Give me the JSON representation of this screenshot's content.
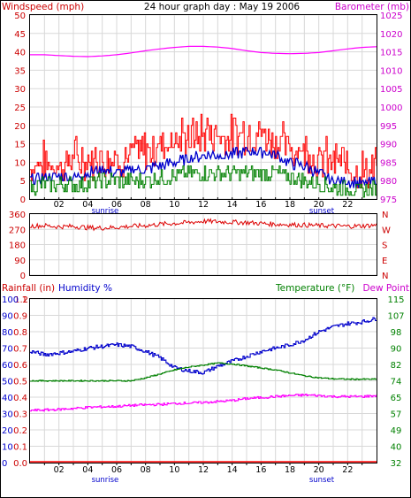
{
  "header": {
    "left_title": "Windspeed (mph)",
    "center_title": "24 hour graph day : May 19 2006",
    "right_title": "Barometer (mb)"
  },
  "x_axis": {
    "ticks": [
      "02",
      "04",
      "06",
      "08",
      "10",
      "12",
      "14",
      "16",
      "18",
      "20",
      "22"
    ],
    "sunrise_label": "sunrise",
    "sunset_label": "sunset",
    "sunrise_hour": 5.2,
    "sunset_hour": 20.2
  },
  "colors": {
    "frame": "#000000",
    "grid": "#d8d8d8",
    "gust": "#ff0000",
    "avg_wind": "#0000cc",
    "low_wind": "#008000",
    "barometer": "#ff00ff",
    "direction": "#dd0000",
    "humidity": "#0000cc",
    "temperature": "#008000",
    "dewpoint": "#ff00ff",
    "rainfall": "#ff0000",
    "blue_label": "#0000cc",
    "red_label": "#cc0000",
    "green_label": "#008000",
    "magenta_label": "#cc00cc"
  },
  "chart_data": [
    {
      "type": "line",
      "title": "24 hour graph day : May 19 2006",
      "y_left_label": "Windspeed (mph)",
      "y_right_label": "Barometer (mb)",
      "y_left_ticks": [
        "50",
        "45",
        "40",
        "35",
        "30",
        "25",
        "20",
        "15",
        "10",
        "5",
        "0"
      ],
      "y_right_ticks": [
        "1025",
        "1020",
        "1015",
        "1010",
        "1005",
        "1000",
        "995",
        "990",
        "985",
        "980",
        "975"
      ],
      "ylim_left": [
        0,
        50
      ],
      "ylim_right": [
        975,
        1025
      ],
      "xlim": [
        0,
        24
      ],
      "series": [
        {
          "x": [
            0,
            1,
            2,
            3,
            4,
            5,
            6,
            7,
            8,
            9,
            10,
            11,
            12,
            13,
            14,
            15,
            16,
            17,
            18,
            19,
            20,
            21,
            22,
            23,
            24
          ],
          "y": [
            8,
            9,
            8,
            10,
            9,
            10,
            10,
            11,
            12,
            14,
            15,
            16,
            17,
            17,
            16,
            17,
            17,
            15,
            13,
            12,
            10,
            9,
            8,
            7,
            7
          ]
        },
        {
          "x": [
            0,
            1,
            2,
            3,
            4,
            5,
            6,
            7,
            8,
            9,
            10,
            11,
            12,
            13,
            14,
            15,
            16,
            17,
            18,
            19,
            20,
            21,
            22,
            23,
            24
          ],
          "y": [
            5,
            6,
            6,
            6,
            7,
            8,
            7,
            8,
            8,
            9,
            10,
            11,
            12,
            12,
            12,
            13,
            13,
            12,
            10,
            9,
            7,
            5,
            5,
            4,
            5
          ]
        },
        {
          "x": [
            0,
            1,
            2,
            3,
            4,
            5,
            6,
            7,
            8,
            9,
            10,
            11,
            12,
            13,
            14,
            15,
            16,
            17,
            18,
            19,
            20,
            21,
            22,
            23,
            24
          ],
          "y": [
            3,
            4,
            4,
            4,
            4,
            5,
            5,
            5,
            5,
            6,
            6,
            7,
            7,
            7,
            7,
            7,
            7,
            7,
            6,
            5,
            4,
            3,
            3,
            2,
            3
          ]
        },
        {
          "x": [
            0,
            1,
            2,
            3,
            4,
            5,
            6,
            7,
            8,
            9,
            10,
            11,
            12,
            13,
            14,
            15,
            16,
            17,
            18,
            19,
            20,
            21,
            22,
            23,
            24
          ],
          "y": [
            1014.2,
            1014.2,
            1014,
            1013.8,
            1013.7,
            1013.9,
            1014.2,
            1014.7,
            1015.3,
            1015.8,
            1016.2,
            1016.5,
            1016.5,
            1016.3,
            1015.9,
            1015.3,
            1014.8,
            1014.6,
            1014.5,
            1014.6,
            1014.8,
            1015.3,
            1015.8,
            1016.2,
            1016.4
          ],
          "axis": "right"
        }
      ]
    },
    {
      "type": "line",
      "y_left_ticks": [
        "360",
        "270",
        "180",
        "90",
        "0"
      ],
      "y_right_ticks": [
        "N",
        "W",
        "S",
        "E",
        "N"
      ],
      "ylim": [
        0,
        360
      ],
      "xlim": [
        0,
        24
      ],
      "series": [
        {
          "x": [
            0,
            1,
            2,
            3,
            4,
            5,
            6,
            7,
            8,
            9,
            10,
            11,
            12,
            13,
            14,
            15,
            16,
            17,
            18,
            19,
            20,
            21,
            22,
            23,
            24
          ],
          "y": [
            290,
            292,
            285,
            288,
            280,
            278,
            282,
            288,
            292,
            300,
            305,
            310,
            318,
            315,
            312,
            310,
            305,
            300,
            298,
            295,
            292,
            290,
            288,
            290,
            295
          ]
        }
      ]
    },
    {
      "type": "line",
      "y_left_label_1": "Rainfall (in)",
      "y_left_label_2": "Humidity %",
      "y_right_label_1": "Temperature (°F)",
      "y_right_label_2": "Dew Point",
      "rain_ticks": [
        "1.2",
        "1",
        "0.9",
        "0.8",
        "0.7",
        "0.6",
        "0.5",
        "0.4",
        "0.3",
        "0.2",
        "0.1",
        "0.0"
      ],
      "humidity_ticks": [
        "100",
        "90",
        "80",
        "70",
        "60",
        "50",
        "40",
        "30",
        "20",
        "10",
        "0"
      ],
      "temp_ticks": [
        "115",
        "107",
        "98",
        "90",
        "82",
        "74",
        "65",
        "57",
        "49",
        "40",
        "32"
      ],
      "ylim_humidity": [
        0,
        100
      ],
      "ylim_temp": [
        32,
        115
      ],
      "ylim_rain": [
        0,
        1.2
      ],
      "xlim": [
        0,
        24
      ],
      "series": [
        {
          "x": [
            0,
            1,
            2,
            3,
            4,
            5,
            6,
            7,
            8,
            9,
            10,
            11,
            12,
            13,
            14,
            15,
            16,
            17,
            18,
            19,
            20,
            21,
            22,
            23,
            24
          ],
          "y": [
            68,
            66,
            67,
            68,
            70,
            71,
            72,
            71,
            68,
            64,
            58,
            56,
            55,
            59,
            62,
            65,
            68,
            70,
            72,
            75,
            80,
            83,
            85,
            86,
            88
          ]
        },
        {
          "x": [
            0,
            1,
            2,
            3,
            4,
            5,
            6,
            7,
            8,
            9,
            10,
            11,
            12,
            13,
            14,
            15,
            16,
            17,
            18,
            19,
            20,
            21,
            22,
            23,
            24
          ],
          "y": [
            73.5,
            73.5,
            73.5,
            73.5,
            73.5,
            73.5,
            73.5,
            73.5,
            75,
            77,
            79,
            80.5,
            81.5,
            82.5,
            82,
            81,
            80,
            79,
            77.5,
            76,
            75,
            74.5,
            74.3,
            74.3,
            74.3
          ],
          "axis": "temperature"
        },
        {
          "x": [
            0,
            1,
            2,
            3,
            4,
            5,
            6,
            7,
            8,
            9,
            10,
            11,
            12,
            13,
            14,
            15,
            16,
            17,
            18,
            19,
            20,
            21,
            22,
            23,
            24
          ],
          "y": [
            58.5,
            58.7,
            59,
            59.5,
            60,
            60.3,
            60.5,
            61,
            61.3,
            61.5,
            62,
            62.2,
            62.5,
            63,
            63.5,
            64.5,
            65,
            65.5,
            66,
            66.3,
            66,
            65.5,
            65.5,
            65.5,
            66
          ],
          "axis": "temperature"
        },
        {
          "x": [
            0,
            24
          ],
          "y": [
            0,
            0
          ],
          "axis": "rainfall"
        }
      ]
    }
  ]
}
